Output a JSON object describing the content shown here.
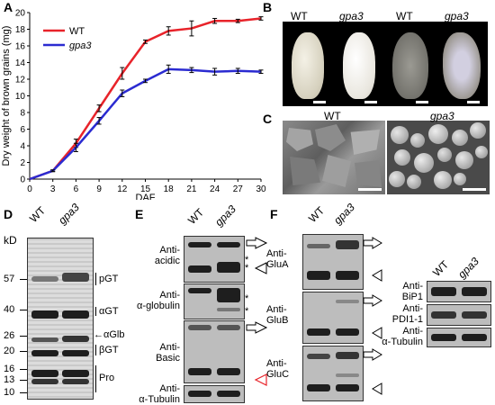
{
  "panels": {
    "A": "A",
    "B": "B",
    "C": "C",
    "D": "D",
    "E": "E",
    "F": "F"
  },
  "chart_data": {
    "type": "line",
    "xlabel": "DAF",
    "ylabel": "Dry weight of brown grains (mg)",
    "x": [
      0,
      3,
      6,
      9,
      12,
      15,
      18,
      21,
      24,
      27,
      30
    ],
    "xlim": [
      0,
      30
    ],
    "ylim": [
      0,
      20
    ],
    "yticks": [
      0,
      2,
      4,
      6,
      8,
      10,
      12,
      14,
      16,
      18,
      20
    ],
    "legend_position": "top-left",
    "series": [
      {
        "name": "WT",
        "color": "#e8232a",
        "values": [
          0,
          1.0,
          4.3,
          8.5,
          12.7,
          16.5,
          17.8,
          18.1,
          19.0,
          19.0,
          19.3
        ],
        "err": [
          0,
          0.1,
          0.5,
          0.4,
          0.7,
          0.2,
          0.5,
          0.9,
          0.3,
          0.2,
          0.2
        ]
      },
      {
        "name": "gpa3",
        "color": "#2b2bd1",
        "values": [
          0,
          1.0,
          3.8,
          7.0,
          10.3,
          11.8,
          13.2,
          13.1,
          12.9,
          13.0,
          12.9
        ],
        "err": [
          0,
          0.1,
          0.5,
          0.4,
          0.4,
          0.2,
          0.5,
          0.3,
          0.4,
          0.3,
          0.2
        ]
      }
    ]
  },
  "panel_b": {
    "labels": [
      "WT",
      "gpa3",
      "WT",
      "gpa3"
    ]
  },
  "panel_c": {
    "labels": [
      "WT",
      "gpa3"
    ]
  },
  "panel_d": {
    "lanes": [
      "WT",
      "gpa3"
    ],
    "kd_label": "kD",
    "markers": [
      "57",
      "40",
      "26",
      "20",
      "16",
      "13",
      "10"
    ],
    "right": {
      "pgt": "pGT",
      "agt": "αGT",
      "aglb": "αGlb",
      "bgt": "βGT",
      "pro": "Pro"
    }
  },
  "panel_e": {
    "lanes": [
      "WT",
      "gpa3"
    ],
    "rows": [
      {
        "label": "Anti-\nacidic"
      },
      {
        "label": "Anti-\nα-globulin"
      },
      {
        "label": "Anti-\nBasic"
      },
      {
        "label": "Anti-\nα-Tubulin"
      }
    ],
    "asterisk": "*"
  },
  "panel_f": {
    "lanes": [
      "WT",
      "gpa3"
    ],
    "rows": [
      {
        "label": "Anti-\nGluA"
      },
      {
        "label": "Anti-\nGluB"
      },
      {
        "label": "Anti-\nGluC"
      }
    ],
    "side_lanes": [
      "WT",
      "gpa3"
    ],
    "side_rows": [
      {
        "label": "Anti-\nBiP1"
      },
      {
        "label": "Anti-\nPDI1-1"
      },
      {
        "label": "Anti-\nα-Tubulin"
      }
    ]
  }
}
